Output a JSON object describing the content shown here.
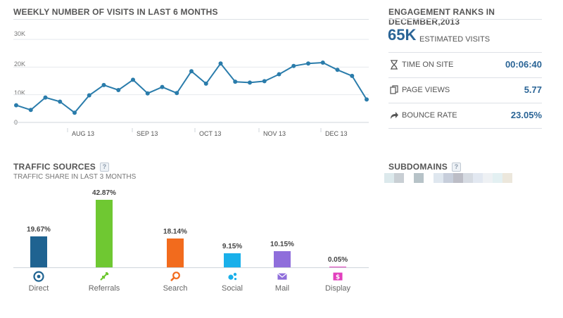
{
  "visits": {
    "title": "WEEKLY NUMBER OF VISITS IN LAST 6 MONTHS",
    "y_ticks": [
      "30K",
      "20K",
      "10K",
      "0"
    ],
    "x_ticks": [
      "AUG 13",
      "SEP 13",
      "OCT 13",
      "NOV 13",
      "DEC 13"
    ]
  },
  "chart_data": [
    {
      "type": "line",
      "title": "WEEKLY NUMBER OF VISITS IN LAST 6 MONTHS",
      "xlabel": "",
      "ylabel": "",
      "ylim": [
        0,
        30000
      ],
      "x_tick_labels": [
        "AUG 13",
        "SEP 13",
        "OCT 13",
        "NOV 13",
        "DEC 13"
      ],
      "grid": true,
      "series": [
        {
          "values": [
            6200,
            4500,
            9000,
            7500,
            3500,
            9800,
            13500,
            11700,
            15400,
            10500,
            12800,
            10600,
            18500,
            14000,
            21300,
            14700,
            14400,
            14900,
            17400,
            20400,
            21300,
            21600,
            19000,
            16800,
            8300
          ]
        }
      ],
      "color": "#2a7cab"
    },
    {
      "type": "bar",
      "title": "TRAFFIC SOURCES",
      "categories": [
        "Direct",
        "Referrals",
        "Search",
        "Social",
        "Mail",
        "Display"
      ],
      "values": [
        19.67,
        42.87,
        18.14,
        9.15,
        10.15,
        0.05
      ],
      "value_labels": [
        "19.67%",
        "42.87%",
        "18.14%",
        "9.15%",
        "10.15%",
        "0.05%"
      ],
      "colors": [
        "#1f6391",
        "#6fc832",
        "#f26b1d",
        "#1ab0ea",
        "#8f6edb",
        "#e23fbd"
      ]
    }
  ],
  "engagement": {
    "title": "ENGAGEMENT RANKS IN DECEMBER,2013",
    "visits_value": "65K",
    "visits_label": "ESTIMATED VISITS",
    "rows": [
      {
        "icon": "hourglass-icon",
        "label": "TIME ON SITE",
        "value": "00:06:40"
      },
      {
        "icon": "pages-icon",
        "label": "PAGE VIEWS",
        "value": "5.77"
      },
      {
        "icon": "share-arrow-icon",
        "label": "BOUNCE RATE",
        "value": "23.05%"
      }
    ]
  },
  "traffic": {
    "title": "TRAFFIC SOURCES",
    "help": "?",
    "subtitle": "TRAFFIC SHARE IN LAST 3 MONTHS",
    "sources": [
      {
        "label": "Direct",
        "value_label": "19.67%",
        "icon": "target-icon"
      },
      {
        "label": "Referrals",
        "value_label": "42.87%",
        "icon": "referral-arrows-icon"
      },
      {
        "label": "Search",
        "value_label": "18.14%",
        "icon": "magnifier-icon"
      },
      {
        "label": "Social",
        "value_label": "9.15%",
        "icon": "social-dots-icon"
      },
      {
        "label": "Mail",
        "value_label": "10.15%",
        "icon": "envelope-icon"
      },
      {
        "label": "Display",
        "value_label": "0.05%",
        "icon": "dollar-icon"
      }
    ]
  },
  "subdomains": {
    "title": "SUBDOMAINS",
    "help": "?",
    "swatch_colors": [
      "#dce9ec",
      "#c9cfd4",
      "#ffffff",
      "#b7c3c8",
      "#ffffff",
      "#dfe7ef",
      "#c7cedb",
      "#bcbdc6",
      "#d6dbe2",
      "#e2e8f1",
      "#eef1f4",
      "#e3f0f2",
      "#ece7dc"
    ]
  }
}
